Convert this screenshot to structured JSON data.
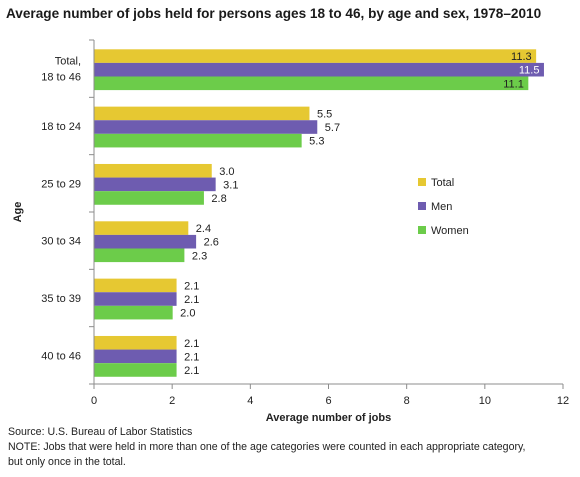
{
  "title": "Average number of jobs held for persons ages 18 to 46, by age and sex, 1978–2010",
  "chart_data": {
    "type": "bar",
    "orientation": "horizontal",
    "categories": [
      [
        "Total,",
        "18 to 46"
      ],
      [
        "18 to 24"
      ],
      [
        "25 to 29"
      ],
      [
        "30 to 34"
      ],
      [
        "35 to 39"
      ],
      [
        "40 to 46"
      ]
    ],
    "series": [
      {
        "name": "Total",
        "color": "#e6c832",
        "values": [
          11.3,
          5.5,
          3.0,
          2.4,
          2.1,
          2.1
        ]
      },
      {
        "name": "Men",
        "color": "#6e5cb0",
        "values": [
          11.5,
          5.7,
          3.1,
          2.6,
          2.1,
          2.1
        ]
      },
      {
        "name": "Women",
        "color": "#6ccc4a",
        "values": [
          11.1,
          5.3,
          2.8,
          2.3,
          2.0,
          2.1
        ]
      }
    ],
    "value_labels": [
      [
        "11.3",
        "5.5",
        "3.0",
        "2.4",
        "2.1",
        "2.1"
      ],
      [
        "11.5",
        "5.7",
        "3.1",
        "2.6",
        "2.1",
        "2.1"
      ],
      [
        "11.1",
        "5.3",
        "2.8",
        "2.3",
        "2.0",
        "2.1"
      ]
    ],
    "xlabel": "Average number of jobs",
    "ylabel": "Age",
    "xlim": [
      0,
      12
    ],
    "xticks": [
      0,
      2,
      4,
      6,
      8,
      10,
      12
    ],
    "grid": false,
    "legend_position": "right"
  },
  "notes": {
    "source": "Source: U.S. Bureau of Labor Statistics",
    "note_line1": "NOTE: Jobs that were held in more than one of the age categories were counted in each appropriate category,",
    "note_line2": "but only once in the total."
  }
}
